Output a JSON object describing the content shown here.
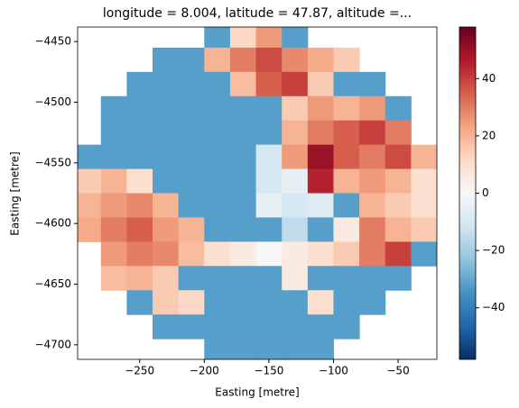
{
  "chart_data": {
    "type": "heatmap",
    "title": "longitude = 8.004, latitude = 47.87, altitude =...",
    "x_label": "Easting [metre]",
    "y_label": "Easting [metre]",
    "x": [
      -290,
      -270,
      -250,
      -230,
      -210,
      -190,
      -170,
      -150,
      -130,
      -110,
      -90,
      -70,
      -50,
      -30
    ],
    "y": [
      -4445,
      -4465,
      -4485,
      -4505,
      -4525,
      -4545,
      -4565,
      -4585,
      -4605,
      -4625,
      -4645,
      -4665,
      -4685,
      -4705
    ],
    "values": [
      [
        null,
        null,
        null,
        null,
        null,
        -32,
        12,
        25,
        -32,
        null,
        null,
        null,
        null,
        null
      ],
      [
        null,
        null,
        null,
        -32,
        -32,
        20,
        30,
        38,
        28,
        22,
        15,
        null,
        null,
        null
      ],
      [
        null,
        null,
        -32,
        -32,
        -32,
        -32,
        18,
        35,
        40,
        15,
        -32,
        -32,
        null,
        null
      ],
      [
        null,
        -32,
        -32,
        -32,
        -32,
        -32,
        -32,
        -32,
        15,
        25,
        20,
        25,
        -32,
        null
      ],
      [
        null,
        -32,
        -32,
        -32,
        -32,
        -32,
        -32,
        -32,
        20,
        30,
        35,
        40,
        30,
        null
      ],
      [
        -32,
        -32,
        -32,
        -32,
        -32,
        -32,
        -32,
        -10,
        25,
        50,
        35,
        30,
        38,
        20
      ],
      [
        15,
        20,
        10,
        -32,
        -32,
        -32,
        -32,
        -10,
        -5,
        45,
        20,
        25,
        20,
        10
      ],
      [
        20,
        25,
        28,
        20,
        -32,
        -32,
        -32,
        -5,
        -10,
        -8,
        -32,
        20,
        15,
        10
      ],
      [
        22,
        30,
        35,
        25,
        20,
        -32,
        -32,
        -32,
        -15,
        -32,
        5,
        30,
        20,
        15
      ],
      [
        null,
        25,
        30,
        28,
        18,
        10,
        5,
        0,
        5,
        10,
        15,
        30,
        40,
        -32
      ],
      [
        null,
        18,
        20,
        15,
        -32,
        -32,
        -32,
        -32,
        5,
        -32,
        -32,
        -32,
        -32,
        null
      ],
      [
        null,
        null,
        -32,
        15,
        12,
        -32,
        -32,
        -32,
        -32,
        10,
        -32,
        -32,
        null,
        null
      ],
      [
        null,
        null,
        null,
        -32,
        -32,
        -32,
        -32,
        -32,
        -32,
        -32,
        -32,
        null,
        null,
        null
      ],
      [
        null,
        null,
        null,
        null,
        null,
        -32,
        -32,
        -32,
        -32,
        -32,
        null,
        null,
        null,
        null
      ]
    ],
    "xlim": [
      -298,
      -20
    ],
    "ylim": [
      -4712,
      -4438
    ],
    "xticks": [
      {
        "value": -250,
        "label": "−250"
      },
      {
        "value": -200,
        "label": "−200"
      },
      {
        "value": -150,
        "label": "−150"
      },
      {
        "value": -100,
        "label": "−100"
      },
      {
        "value": -50,
        "label": "−50"
      }
    ],
    "yticks": [
      {
        "value": -4450,
        "label": "−4450"
      },
      {
        "value": -4500,
        "label": "−4500"
      },
      {
        "value": -4550,
        "label": "−4550"
      },
      {
        "value": -4600,
        "label": "−4600"
      },
      {
        "value": -4650,
        "label": "−4650"
      },
      {
        "value": -4700,
        "label": "−4700"
      }
    ],
    "colormap": "RdBu_r",
    "clim": [
      -58,
      58
    ],
    "cticks": [
      {
        "value": -40,
        "label": "−40"
      },
      {
        "value": -20,
        "label": "−20"
      },
      0,
      20,
      40
    ]
  }
}
